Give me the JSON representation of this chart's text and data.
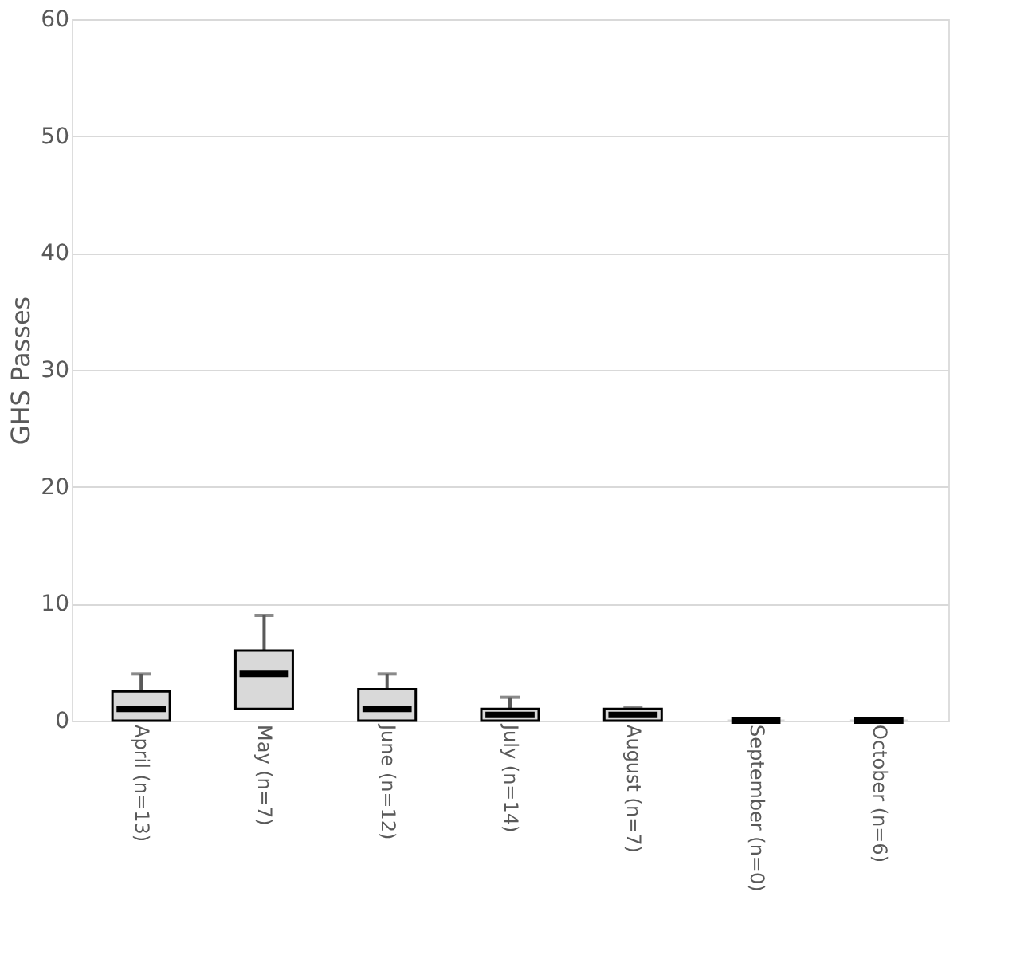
{
  "chart_data": {
    "type": "box",
    "ylabel": "GHS Passes",
    "categories": [
      "April (n=13)",
      "May (n=7)",
      "June (n=12)",
      "July (n=14)",
      "August (n=7)",
      "September (n=0)",
      "October (n=6)"
    ],
    "boxes": [
      {
        "low": 0,
        "q1": 0,
        "median": 1,
        "q3": 2.5,
        "high": 4
      },
      {
        "low": 1,
        "q1": 1,
        "median": 4,
        "q3": 6,
        "high": 9
      },
      {
        "low": 0,
        "q1": 0,
        "median": 1,
        "q3": 2.7,
        "high": 4
      },
      {
        "low": 0,
        "q1": 0,
        "median": 0.5,
        "q3": 1,
        "high": 2
      },
      {
        "low": 0,
        "q1": 0,
        "median": 0.5,
        "q3": 1,
        "high": 1.1
      },
      {
        "low": 0,
        "q1": 0,
        "median": 0,
        "q3": 0,
        "high": 0
      },
      {
        "low": 0,
        "q1": 0,
        "median": 0,
        "q3": 0,
        "high": 0
      }
    ],
    "color": "#d9d9d9",
    "ylim": [
      0,
      60
    ],
    "yticks": [
      0,
      10,
      20,
      30,
      40,
      50,
      60
    ],
    "grid": "y"
  }
}
